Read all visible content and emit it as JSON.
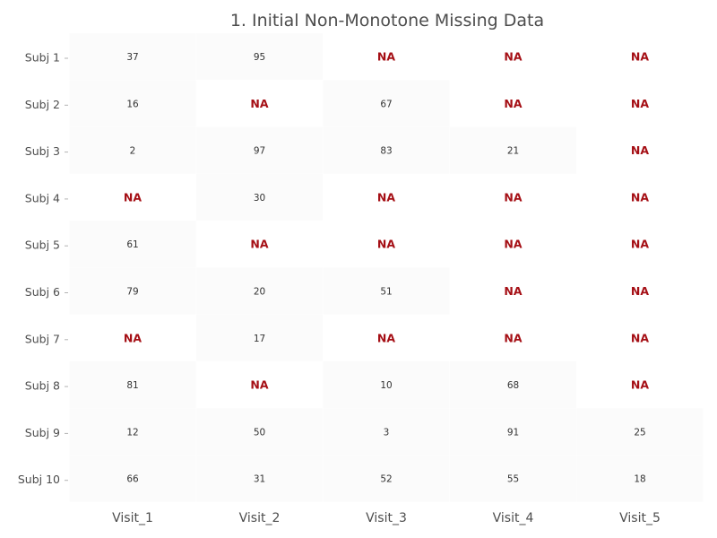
{
  "chart_data": {
    "type": "heatmap",
    "title": "1. Initial Non-Monotone Missing Data",
    "rows": [
      "Subj 1",
      "Subj 2",
      "Subj 3",
      "Subj 4",
      "Subj 5",
      "Subj 6",
      "Subj 7",
      "Subj 8",
      "Subj 9",
      "Subj 10"
    ],
    "columns": [
      "Visit_1",
      "Visit_2",
      "Visit_3",
      "Visit_4",
      "Visit_5"
    ],
    "values": [
      [
        37,
        95,
        "NA",
        "NA",
        "NA"
      ],
      [
        16,
        "NA",
        67,
        "NA",
        "NA"
      ],
      [
        2,
        97,
        83,
        21,
        "NA"
      ],
      [
        "NA",
        30,
        "NA",
        "NA",
        "NA"
      ],
      [
        61,
        "NA",
        "NA",
        "NA",
        "NA"
      ],
      [
        79,
        20,
        51,
        "NA",
        "NA"
      ],
      [
        "NA",
        17,
        "NA",
        "NA",
        "NA"
      ],
      [
        81,
        "NA",
        10,
        68,
        "NA"
      ],
      [
        12,
        50,
        3,
        91,
        25
      ],
      [
        66,
        31,
        52,
        55,
        18
      ]
    ],
    "na_label": "NA",
    "colors": {
      "value_text": "#333333",
      "na_text": "#a50f15",
      "label_text": "#4d4d4d",
      "tile_fill": "#fbfbfb"
    },
    "grid": false,
    "legend": "none"
  }
}
